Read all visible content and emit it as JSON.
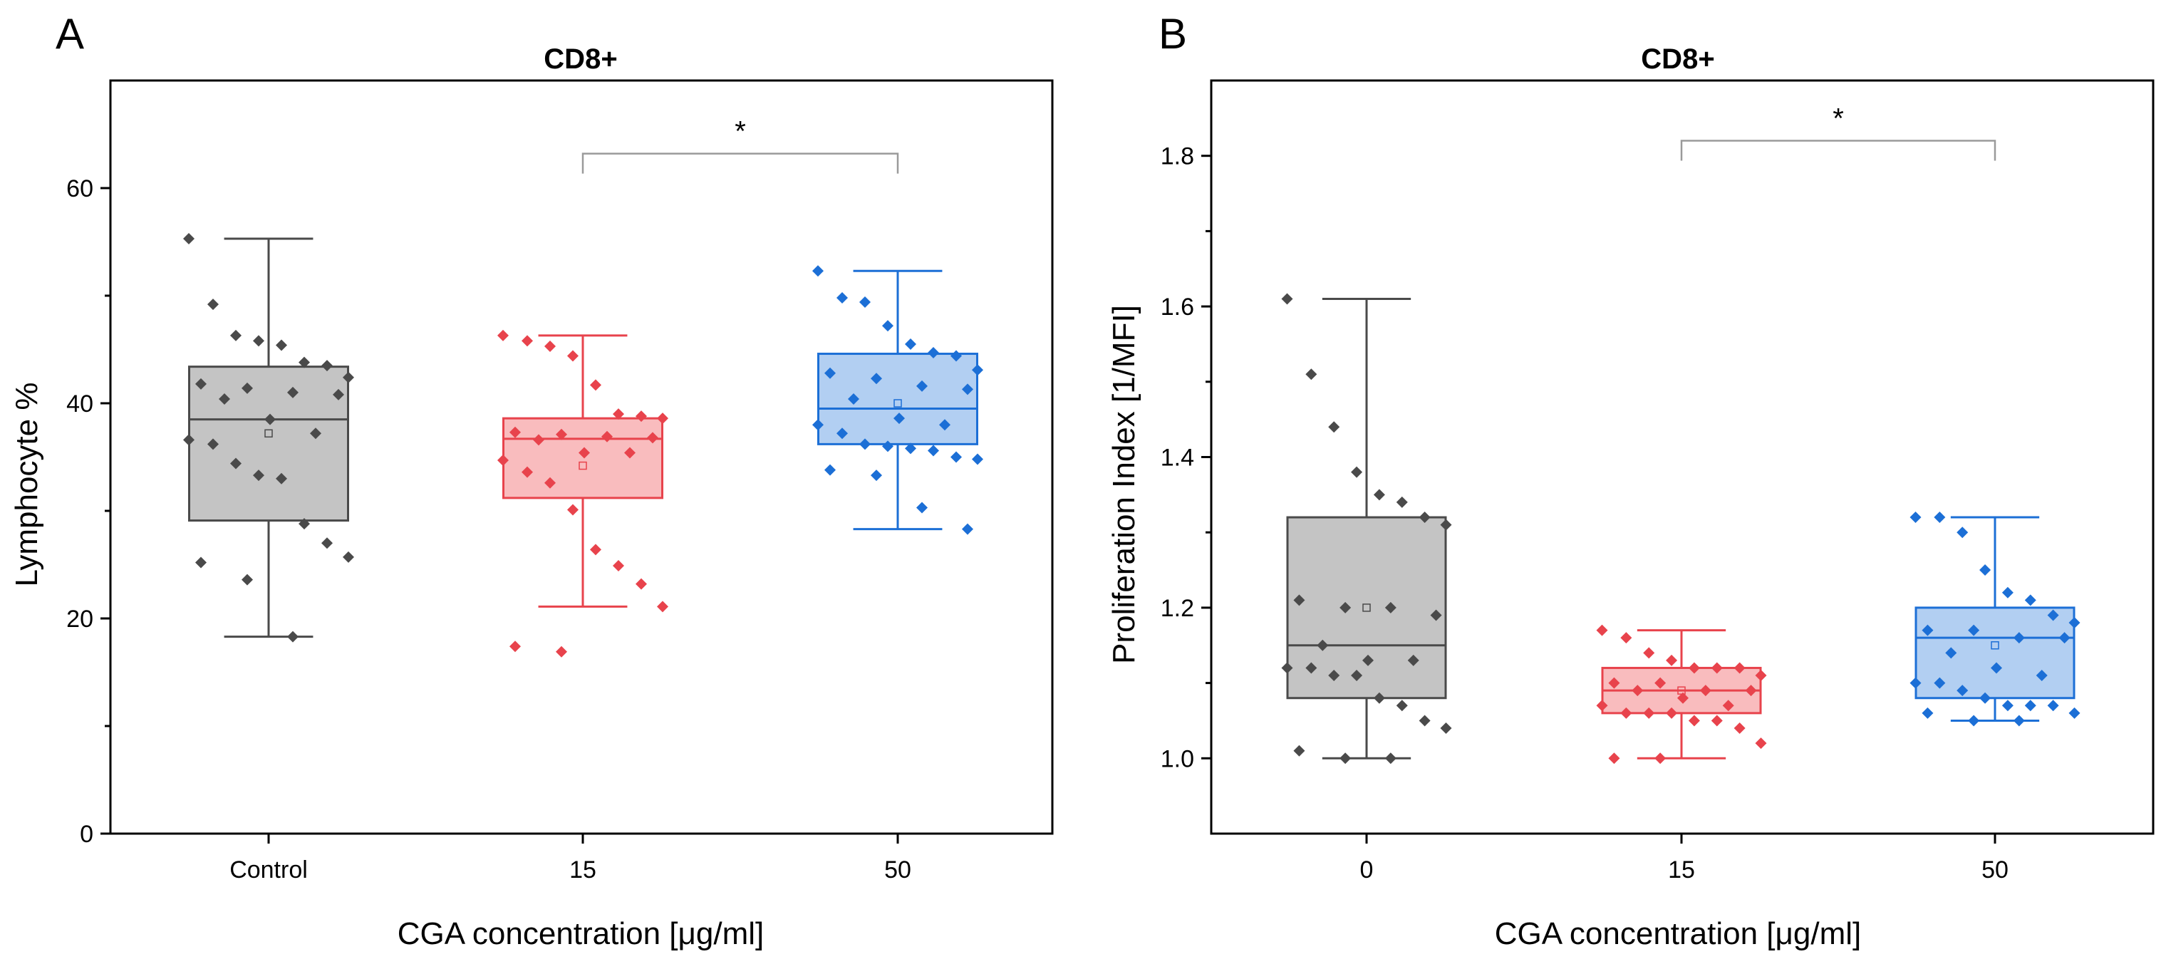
{
  "colors": {
    "control": {
      "fill": "#c4c4c4",
      "stroke": "#4a4a4a",
      "point": "#4a4a4a"
    },
    "c15": {
      "fill": "#f9bcbe",
      "stroke": "#e8434c",
      "point": "#e8434c"
    },
    "c50": {
      "fill": "#b2cff2",
      "stroke": "#1c6fd6",
      "point": "#1c6fd6"
    }
  },
  "chart_data": [
    {
      "panel": "A",
      "type": "box",
      "title": "CD8+",
      "xlabel": "CGA concentration [μg/ml]",
      "ylabel": "Lymphocyte %",
      "ylim": [
        0,
        70
      ],
      "yticks": [
        0,
        20,
        40,
        60
      ],
      "categories": [
        "Control",
        "15",
        "50"
      ],
      "significance": {
        "from": "15",
        "to": "50",
        "label": "*",
        "y": 63.2
      },
      "boxes": [
        {
          "category": "Control",
          "color": "control",
          "min": 18.3,
          "q1": 29.1,
          "median": 38.5,
          "q3": 43.4,
          "max": 55.3,
          "mean": 37.2,
          "points": [
            55.3,
            49.2,
            46.3,
            45.8,
            45.4,
            43.8,
            43.5,
            42.4,
            41.8,
            41.4,
            41.0,
            40.8,
            40.4,
            38.5,
            37.2,
            36.6,
            36.2,
            34.4,
            33.3,
            33.0,
            28.8,
            27.0,
            25.7,
            25.2,
            23.6,
            18.3
          ]
        },
        {
          "category": "15",
          "color": "c15",
          "min": 21.1,
          "q1": 31.2,
          "median": 36.7,
          "q3": 38.6,
          "max": 46.3,
          "mean": 34.2,
          "points": [
            46.3,
            45.8,
            45.3,
            44.4,
            41.7,
            39.0,
            38.8,
            38.6,
            37.3,
            37.1,
            36.9,
            36.8,
            36.6,
            35.4,
            35.4,
            34.7,
            33.6,
            32.6,
            30.1,
            26.4,
            24.9,
            23.2,
            21.1,
            17.4,
            16.9
          ]
        },
        {
          "category": "50",
          "color": "c50",
          "min": 28.3,
          "q1": 36.2,
          "median": 39.5,
          "q3": 44.6,
          "max": 52.3,
          "mean": 40.0,
          "points": [
            52.3,
            49.8,
            49.4,
            47.2,
            45.5,
            44.7,
            44.4,
            43.1,
            42.8,
            42.3,
            41.6,
            41.3,
            40.4,
            38.6,
            38.0,
            38.0,
            37.2,
            36.2,
            36.0,
            35.8,
            35.6,
            35.0,
            34.8,
            33.8,
            33.3,
            30.3,
            28.3
          ]
        }
      ]
    },
    {
      "panel": "B",
      "type": "box",
      "title": "CD8+",
      "xlabel": "CGA concentration [μg/ml]",
      "ylabel": "Proliferation Index [1/MFI]",
      "ylim": [
        0.9,
        1.9
      ],
      "yticks": [
        1.0,
        1.2,
        1.4,
        1.6,
        1.8
      ],
      "categories": [
        "0",
        "15",
        "50"
      ],
      "significance": {
        "from": "15",
        "to": "50",
        "label": "*",
        "y": 1.82
      },
      "boxes": [
        {
          "category": "0",
          "color": "control",
          "min": 1.0,
          "q1": 1.08,
          "median": 1.15,
          "q3": 1.32,
          "max": 1.61,
          "mean": 1.2,
          "points": [
            1.61,
            1.51,
            1.44,
            1.38,
            1.35,
            1.34,
            1.32,
            1.31,
            1.21,
            1.2,
            1.2,
            1.19,
            1.15,
            1.13,
            1.13,
            1.12,
            1.12,
            1.11,
            1.11,
            1.08,
            1.07,
            1.05,
            1.04,
            1.01,
            1.0,
            1.0
          ]
        },
        {
          "category": "15",
          "color": "c15",
          "min": 1.0,
          "q1": 1.06,
          "median": 1.09,
          "q3": 1.12,
          "max": 1.17,
          "mean": 1.09,
          "points": [
            1.17,
            1.16,
            1.14,
            1.13,
            1.12,
            1.12,
            1.12,
            1.11,
            1.1,
            1.1,
            1.09,
            1.09,
            1.09,
            1.08,
            1.07,
            1.07,
            1.06,
            1.06,
            1.06,
            1.05,
            1.05,
            1.04,
            1.02,
            1.0,
            1.0
          ]
        },
        {
          "category": "50",
          "color": "c50",
          "min": 1.05,
          "q1": 1.08,
          "median": 1.16,
          "q3": 1.2,
          "max": 1.32,
          "mean": 1.15,
          "points": [
            1.32,
            1.32,
            1.3,
            1.25,
            1.22,
            1.21,
            1.19,
            1.18,
            1.17,
            1.17,
            1.16,
            1.16,
            1.14,
            1.12,
            1.11,
            1.1,
            1.1,
            1.09,
            1.08,
            1.07,
            1.07,
            1.07,
            1.06,
            1.06,
            1.05,
            1.05
          ]
        }
      ]
    }
  ]
}
